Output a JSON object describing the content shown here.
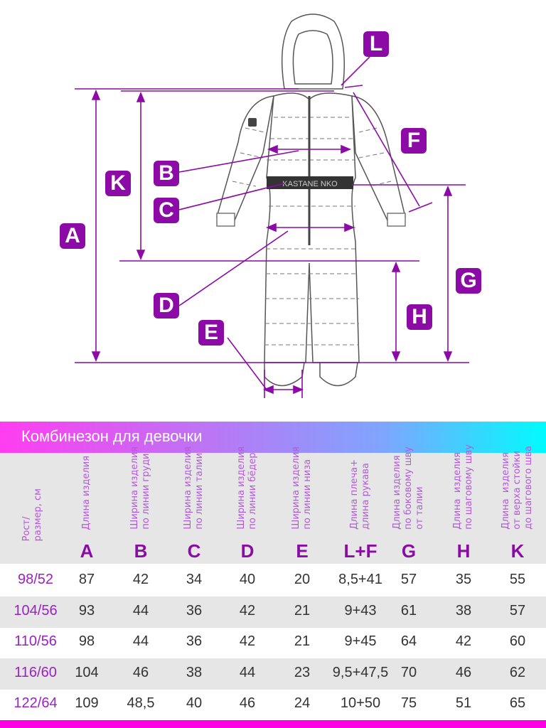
{
  "diagram": {
    "labels": [
      "A",
      "B",
      "C",
      "D",
      "E",
      "F",
      "G",
      "H",
      "K",
      "L"
    ],
    "belt_text": "KASTANE NKO",
    "accent_color": "#8c0aa6"
  },
  "table": {
    "title": "Комбинезон для девочки",
    "size_header": "Рост/\nразмер, см",
    "columns": [
      {
        "desc": "Длина изделия",
        "letter": "A"
      },
      {
        "desc": "Ширина изделия\nпо линии груди",
        "letter": "B"
      },
      {
        "desc": "Ширина изделия\nпо линии талии",
        "letter": "C"
      },
      {
        "desc": "Ширина изделия\nпо линии бёдер",
        "letter": "D"
      },
      {
        "desc": "Ширина изделия\nпо линии низа",
        "letter": "E"
      },
      {
        "desc": "Длина плеча+\nдлина рукава",
        "letter": "L+F"
      },
      {
        "desc": "Длина изделия\nпо боковому шву\nот талии",
        "letter": "G"
      },
      {
        "desc": "Длина  изделия\nпо шаговому шву",
        "letter": "H"
      },
      {
        "desc": "Длина  изделия\nот верха стойки\nдо шагового шва",
        "letter": "K"
      }
    ],
    "rows": [
      [
        "98/52",
        "87",
        "42",
        "34",
        "40",
        "20",
        "8,5+41",
        "57",
        "35",
        "55"
      ],
      [
        "104/56",
        "93",
        "44",
        "36",
        "42",
        "21",
        "9+43",
        "61",
        "38",
        "57"
      ],
      [
        "110/56",
        "98",
        "44",
        "36",
        "42",
        "21",
        "9+45",
        "64",
        "42",
        "60"
      ],
      [
        "116/60",
        "104",
        "46",
        "38",
        "44",
        "23",
        "9,5+47,5",
        "70",
        "46",
        "62"
      ],
      [
        "122/64",
        "109",
        "48,5",
        "40",
        "46",
        "24",
        "10+50",
        "75",
        "51",
        "65"
      ]
    ],
    "colors": {
      "band_start": "#ff3df0",
      "band_end": "#00fbff",
      "size_text": "#9a22c4",
      "bottom_bar": "#ff00e6"
    }
  }
}
